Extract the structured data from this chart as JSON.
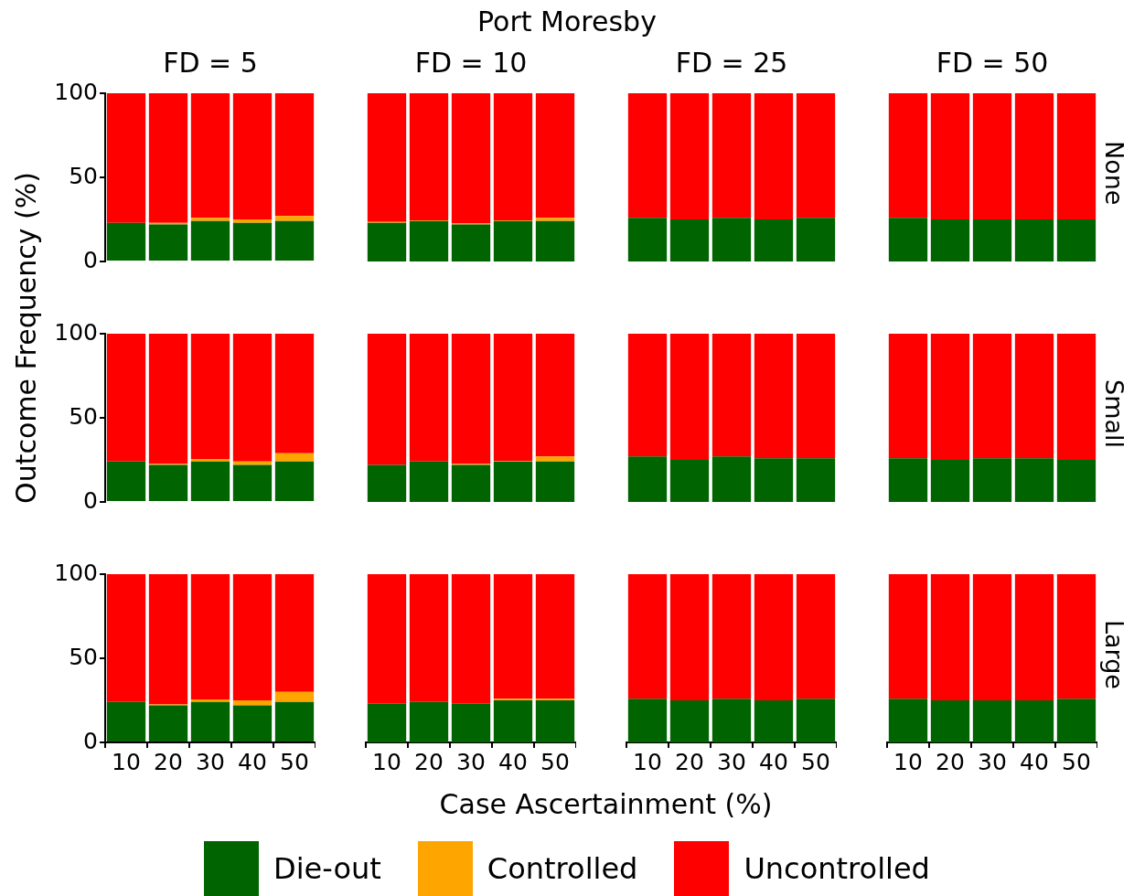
{
  "chart_data": [
    {
      "type": "other",
      "title": "Port Moresby",
      "xlabel": "Case Ascertainment (%)",
      "ylabel": "Outcome Frequency (%)"
    },
    {
      "type": "bar",
      "title": "FD = 5",
      "categories": [
        "10",
        "20",
        "30",
        "40",
        "50"
      ],
      "stacked": true,
      "ylim": [
        0,
        100
      ],
      "yticks": [
        0,
        50,
        100
      ],
      "tick_labels": "y",
      "legend": "bottom",
      "series": [
        {
          "name": "Die-out",
          "color": "#006400",
          "values": [
            23,
            22,
            24,
            23,
            24
          ]
        },
        {
          "name": "Controlled",
          "color": "#ffa500",
          "values": [
            0,
            1,
            2,
            2,
            3
          ]
        },
        {
          "name": "Uncontrolled",
          "color": "#ff0000",
          "values": [
            77,
            77,
            74,
            75,
            73
          ]
        }
      ]
    },
    {
      "type": "bar",
      "title": "FD = 10",
      "categories": [
        "10",
        "20",
        "30",
        "40",
        "50"
      ],
      "stacked": true,
      "ylim": [
        0,
        100
      ],
      "yticks": [
        0,
        50,
        100
      ],
      "tick_labels": false,
      "series": [
        {
          "color": "#006400",
          "values": [
            23,
            24,
            22,
            24,
            24
          ]
        },
        {
          "color": "#ffa500",
          "values": [
            0.5,
            0.5,
            0.5,
            0.5,
            2
          ]
        },
        {
          "color": "#ff0000",
          "values": [
            76.5,
            75.5,
            77.5,
            75.5,
            74
          ]
        }
      ]
    },
    {
      "type": "bar",
      "title": "FD = 25",
      "categories": [
        "10",
        "20",
        "30",
        "40",
        "50"
      ],
      "stacked": true,
      "ylim": [
        0,
        100
      ],
      "yticks": [
        0,
        50,
        100
      ],
      "tick_labels": false,
      "series": [
        {
          "color": "#006400",
          "values": [
            26,
            25,
            26,
            25,
            26
          ]
        },
        {
          "color": "#ffa500",
          "values": [
            0,
            0,
            0,
            0,
            0
          ]
        },
        {
          "color": "#ff0000",
          "values": [
            74,
            75,
            74,
            75,
            74
          ]
        }
      ]
    },
    {
      "type": "bar",
      "title": "FD = 50",
      "y2label": "None",
      "categories": [
        "10",
        "20",
        "30",
        "40",
        "50"
      ],
      "stacked": true,
      "ylim": [
        0,
        100
      ],
      "yticks": [
        0,
        50,
        100
      ],
      "tick_labels": false,
      "series": [
        {
          "color": "#006400",
          "values": [
            26,
            25,
            25,
            25,
            25
          ]
        },
        {
          "color": "#ffa500",
          "values": [
            0,
            0,
            0,
            0,
            0
          ]
        },
        {
          "color": "#ff0000",
          "values": [
            74,
            75,
            75,
            75,
            75
          ]
        }
      ]
    },
    {
      "type": "bar",
      "categories": [
        "10",
        "20",
        "30",
        "40",
        "50"
      ],
      "stacked": true,
      "ylim": [
        0,
        100
      ],
      "yticks": [
        0,
        50,
        100
      ],
      "tick_labels": "y",
      "series": [
        {
          "color": "#006400",
          "values": [
            24,
            22,
            24,
            22,
            24
          ]
        },
        {
          "color": "#ffa500",
          "values": [
            0,
            0.5,
            1.5,
            2,
            5
          ]
        },
        {
          "color": "#ff0000",
          "values": [
            76,
            77.5,
            74.5,
            76,
            71
          ]
        }
      ]
    },
    {
      "type": "bar",
      "categories": [
        "10",
        "20",
        "30",
        "40",
        "50"
      ],
      "stacked": true,
      "ylim": [
        0,
        100
      ],
      "yticks": [
        0,
        50,
        100
      ],
      "tick_labels": false,
      "series": [
        {
          "color": "#006400",
          "values": [
            22,
            24,
            22,
            24,
            24
          ]
        },
        {
          "color": "#ffa500",
          "values": [
            0,
            0,
            0.5,
            0.5,
            3
          ]
        },
        {
          "color": "#ff0000",
          "values": [
            78,
            76,
            77.5,
            75.5,
            73
          ]
        }
      ]
    },
    {
      "type": "bar",
      "categories": [
        "10",
        "20",
        "30",
        "40",
        "50"
      ],
      "stacked": true,
      "ylim": [
        0,
        100
      ],
      "yticks": [
        0,
        50,
        100
      ],
      "tick_labels": false,
      "series": [
        {
          "color": "#006400",
          "values": [
            27,
            25,
            27,
            26,
            26
          ]
        },
        {
          "color": "#ffa500",
          "values": [
            0,
            0,
            0,
            0,
            0
          ]
        },
        {
          "color": "#ff0000",
          "values": [
            73,
            75,
            73,
            74,
            74
          ]
        }
      ]
    },
    {
      "type": "bar",
      "y2label": "Small",
      "categories": [
        "10",
        "20",
        "30",
        "40",
        "50"
      ],
      "stacked": true,
      "ylim": [
        0,
        100
      ],
      "yticks": [
        0,
        50,
        100
      ],
      "tick_labels": false,
      "series": [
        {
          "color": "#006400",
          "values": [
            26,
            25,
            26,
            26,
            25
          ]
        },
        {
          "color": "#ffa500",
          "values": [
            0,
            0,
            0,
            0,
            0
          ]
        },
        {
          "color": "#ff0000",
          "values": [
            74,
            75,
            74,
            74,
            75
          ]
        }
      ]
    },
    {
      "type": "bar",
      "categories": [
        "10",
        "20",
        "30",
        "40",
        "50"
      ],
      "stacked": true,
      "ylim": [
        0,
        100
      ],
      "yticks": [
        0,
        50,
        100
      ],
      "series": [
        {
          "color": "#006400",
          "values": [
            24,
            22,
            24,
            22,
            24
          ]
        },
        {
          "color": "#ffa500",
          "values": [
            0,
            0.5,
            1.5,
            3,
            6
          ]
        },
        {
          "color": "#ff0000",
          "values": [
            76,
            77.5,
            74.5,
            75,
            70
          ]
        }
      ]
    },
    {
      "type": "bar",
      "categories": [
        "10",
        "20",
        "30",
        "40",
        "50"
      ],
      "stacked": true,
      "ylim": [
        0,
        100
      ],
      "yticks": [
        0,
        50,
        100
      ],
      "tick_labels": "x",
      "series": [
        {
          "color": "#006400",
          "values": [
            23,
            24,
            23,
            25,
            25
          ]
        },
        {
          "color": "#ffa500",
          "values": [
            0,
            0,
            0,
            1,
            1
          ]
        },
        {
          "color": "#ff0000",
          "values": [
            77,
            76,
            77,
            74,
            74
          ]
        }
      ]
    },
    {
      "type": "bar",
      "categories": [
        "10",
        "20",
        "30",
        "40",
        "50"
      ],
      "stacked": true,
      "ylim": [
        0,
        100
      ],
      "yticks": [
        0,
        50,
        100
      ],
      "tick_labels": "x",
      "series": [
        {
          "color": "#006400",
          "values": [
            26,
            25,
            26,
            25,
            26
          ]
        },
        {
          "color": "#ffa500",
          "values": [
            0,
            0,
            0,
            0,
            0
          ]
        },
        {
          "color": "#ff0000",
          "values": [
            74,
            75,
            74,
            75,
            74
          ]
        }
      ]
    },
    {
      "type": "bar",
      "y2label": "Large",
      "categories": [
        "10",
        "20",
        "30",
        "40",
        "50"
      ],
      "stacked": true,
      "ylim": [
        0,
        100
      ],
      "yticks": [
        0,
        50,
        100
      ],
      "tick_labels": "x",
      "series": [
        {
          "color": "#006400",
          "values": [
            26,
            25,
            25,
            25,
            26
          ]
        },
        {
          "color": "#ffa500",
          "values": [
            0,
            0,
            0,
            0,
            0
          ]
        },
        {
          "color": "#ff0000",
          "values": [
            74,
            75,
            75,
            75,
            74
          ]
        }
      ]
    }
  ]
}
